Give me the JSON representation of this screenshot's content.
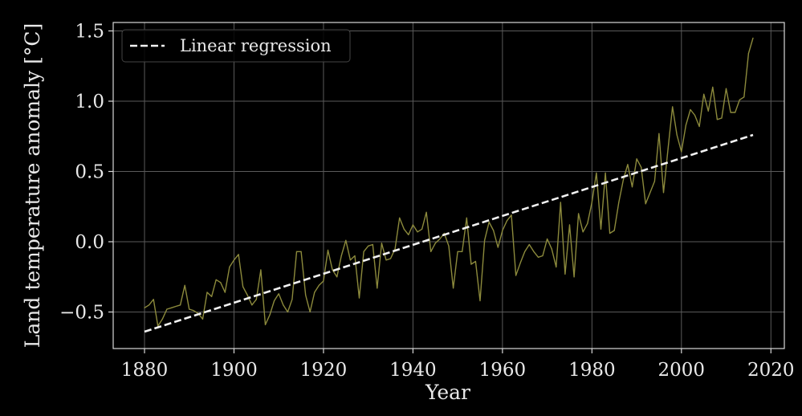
{
  "chart_data": {
    "type": "line",
    "xlabel": "Year",
    "ylabel": "Land temperature anomaly [°C]",
    "xlim": [
      1873,
      2023
    ],
    "ylim": [
      -0.76,
      1.56
    ],
    "xticks": [
      1880,
      1900,
      1920,
      1940,
      1960,
      1980,
      2000,
      2020
    ],
    "yticks": [
      -0.5,
      0.0,
      0.5,
      1.0,
      1.5
    ],
    "xtick_labels": [
      "1880",
      "1900",
      "1920",
      "1940",
      "1960",
      "1980",
      "2000",
      "2020"
    ],
    "ytick_labels": [
      "−0.5",
      "0.0",
      "0.5",
      "1.0",
      "1.5"
    ],
    "grid": true,
    "legend_position": "top-left",
    "legend": [
      "Linear regression"
    ],
    "series": [
      {
        "color": "#8c8a3c",
        "style": "solid",
        "x": [
          1880,
          1881,
          1882,
          1883,
          1884,
          1885,
          1886,
          1887,
          1888,
          1889,
          1890,
          1891,
          1892,
          1893,
          1894,
          1895,
          1896,
          1897,
          1898,
          1899,
          1900,
          1901,
          1902,
          1903,
          1904,
          1905,
          1906,
          1907,
          1908,
          1909,
          1910,
          1911,
          1912,
          1913,
          1914,
          1915,
          1916,
          1917,
          1918,
          1919,
          1920,
          1921,
          1922,
          1923,
          1924,
          1925,
          1926,
          1927,
          1928,
          1929,
          1930,
          1931,
          1932,
          1933,
          1934,
          1935,
          1936,
          1937,
          1938,
          1939,
          1940,
          1941,
          1942,
          1943,
          1944,
          1945,
          1946,
          1947,
          1948,
          1949,
          1950,
          1951,
          1952,
          1953,
          1954,
          1955,
          1956,
          1957,
          1958,
          1959,
          1960,
          1961,
          1962,
          1963,
          1964,
          1965,
          1966,
          1967,
          1968,
          1969,
          1970,
          1971,
          1972,
          1973,
          1974,
          1975,
          1976,
          1977,
          1978,
          1979,
          1980,
          1981,
          1982,
          1983,
          1984,
          1985,
          1986,
          1987,
          1988,
          1989,
          1990,
          1991,
          1992,
          1993,
          1994,
          1995,
          1996,
          1997,
          1998,
          1999,
          2000,
          2001,
          2002,
          2003,
          2004,
          2005,
          2006,
          2007,
          2008,
          2009,
          2010,
          2011,
          2012,
          2013,
          2014,
          2015,
          2016
        ],
        "values": [
          -0.47,
          -0.45,
          -0.41,
          -0.6,
          -0.55,
          -0.48,
          -0.47,
          -0.46,
          -0.45,
          -0.31,
          -0.48,
          -0.49,
          -0.51,
          -0.55,
          -0.36,
          -0.39,
          -0.27,
          -0.29,
          -0.36,
          -0.18,
          -0.13,
          -0.09,
          -0.32,
          -0.38,
          -0.45,
          -0.41,
          -0.2,
          -0.59,
          -0.52,
          -0.42,
          -0.37,
          -0.45,
          -0.5,
          -0.41,
          -0.07,
          -0.07,
          -0.38,
          -0.5,
          -0.36,
          -0.31,
          -0.28,
          -0.06,
          -0.2,
          -0.25,
          -0.1,
          0.01,
          -0.13,
          -0.1,
          -0.4,
          -0.07,
          -0.03,
          -0.02,
          -0.33,
          -0.01,
          -0.13,
          -0.12,
          -0.05,
          0.17,
          0.09,
          0.05,
          0.12,
          0.07,
          0.09,
          0.21,
          -0.07,
          -0.01,
          0.02,
          0.06,
          -0.03,
          -0.33,
          -0.07,
          -0.07,
          0.17,
          -0.16,
          -0.14,
          -0.42,
          0.01,
          0.14,
          0.08,
          -0.04,
          0.08,
          0.15,
          0.19,
          -0.24,
          -0.15,
          -0.07,
          -0.02,
          -0.07,
          -0.11,
          -0.1,
          0.02,
          -0.05,
          -0.18,
          0.28,
          -0.23,
          0.12,
          -0.25,
          0.2,
          0.07,
          0.13,
          0.28,
          0.49,
          0.09,
          0.49,
          0.06,
          0.08,
          0.28,
          0.44,
          0.55,
          0.39,
          0.59,
          0.53,
          0.27,
          0.35,
          0.43,
          0.77,
          0.35,
          0.66,
          0.96,
          0.76,
          0.64,
          0.83,
          0.94,
          0.9,
          0.82,
          1.05,
          0.93,
          1.1,
          0.87,
          0.88,
          1.09,
          0.92,
          0.92,
          1.01,
          1.03,
          1.34,
          1.45
        ]
      },
      {
        "name": "Linear regression",
        "color": "#f2f2f2",
        "style": "dashed",
        "x": [
          1880,
          2016
        ],
        "values": [
          -0.64,
          0.76
        ]
      }
    ]
  }
}
